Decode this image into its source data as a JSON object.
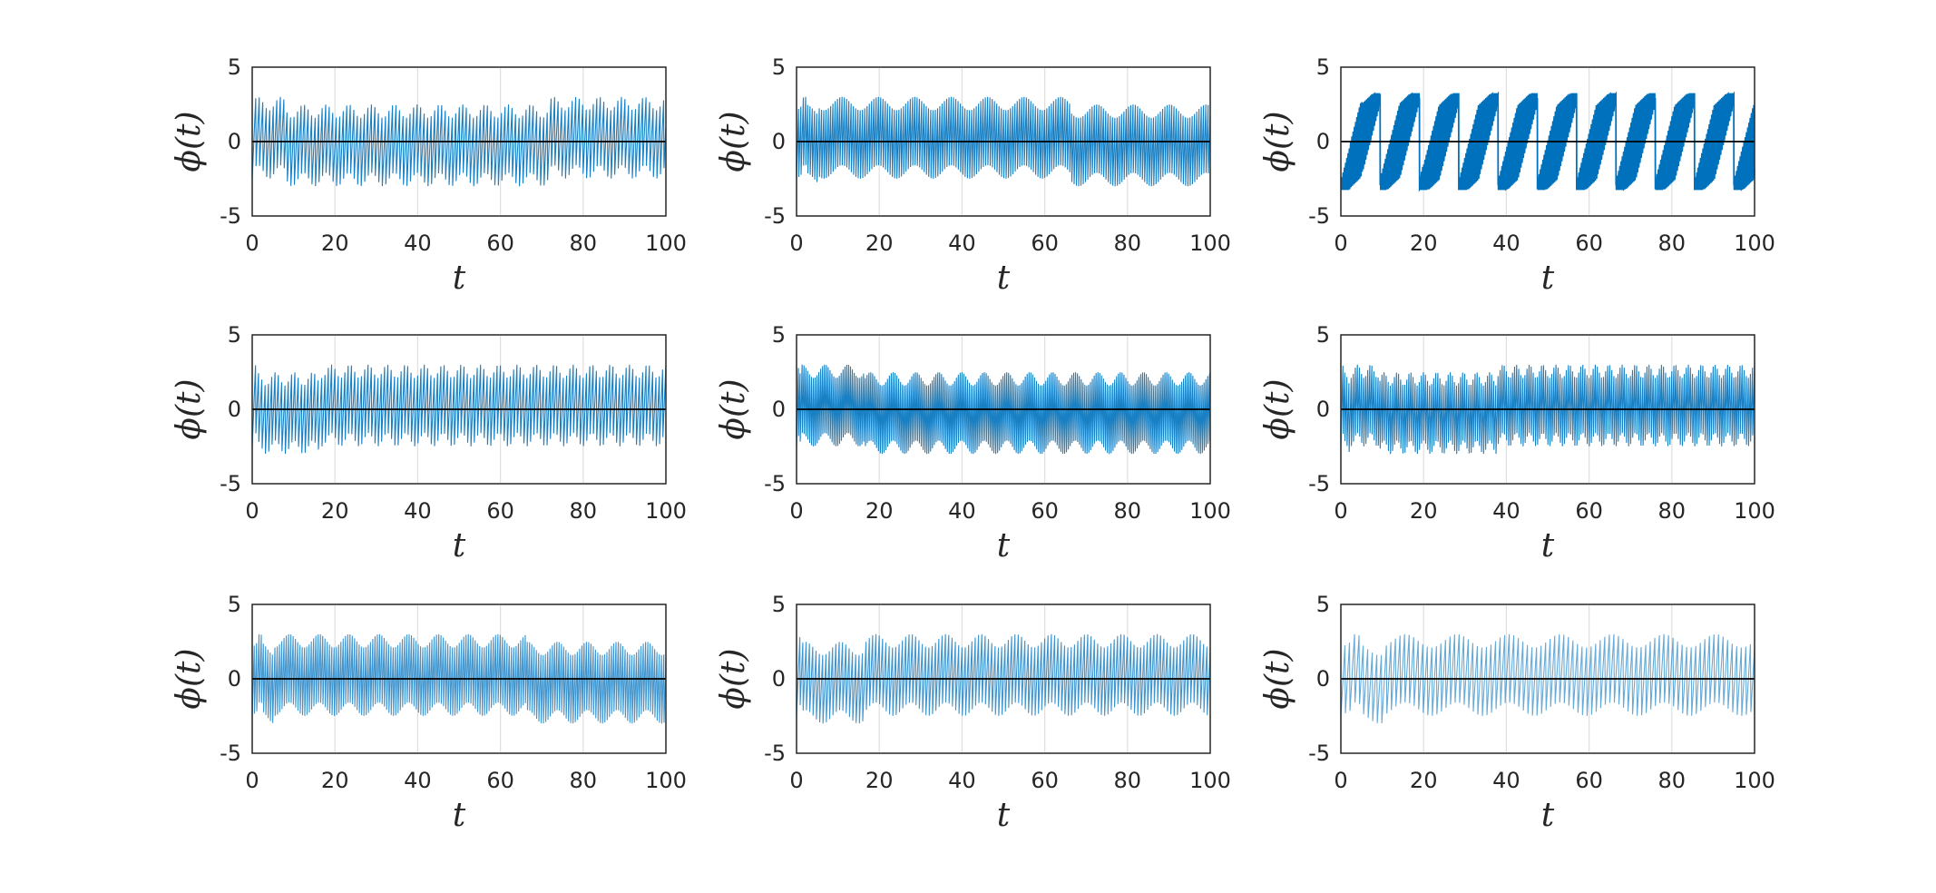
{
  "colors": {
    "series": "#0072BD",
    "zero_line": "#000000",
    "grid": "#dfdfdf",
    "axes": "#262626"
  },
  "chart_data": [
    {
      "type": "line",
      "xlabel": "t",
      "ylabel": "ϕ(t)",
      "xlim": [
        0,
        100
      ],
      "ylim": [
        -5,
        5
      ],
      "x_ticks": [
        "0",
        "20",
        "40",
        "60",
        "80",
        "100"
      ],
      "y_ticks": [
        "5",
        "0",
        "-5"
      ],
      "grid": "vertical",
      "amplitude": 3,
      "sawtooth_period": 0.85,
      "envelope_period": 5.5,
      "density": "dense"
    },
    {
      "type": "line",
      "xlabel": "t",
      "ylabel": "ϕ(t)",
      "xlim": [
        0,
        100
      ],
      "ylim": [
        -5,
        5
      ],
      "x_ticks": [
        "0",
        "20",
        "40",
        "60",
        "80",
        "100"
      ],
      "y_ticks": [
        "5",
        "0",
        "-5"
      ],
      "grid": "vertical",
      "amplitude": 3,
      "sawtooth_period": 0.55,
      "envelope_period": 8.8,
      "density": "dense"
    },
    {
      "type": "line",
      "xlabel": "t",
      "ylabel": "ϕ(t)",
      "xlim": [
        0,
        100
      ],
      "ylim": [
        -5,
        5
      ],
      "x_ticks": [
        "0",
        "20",
        "40",
        "60",
        "80",
        "100"
      ],
      "y_ticks": [
        "5",
        "0",
        "-5"
      ],
      "grid": "vertical",
      "amplitude": 3.2,
      "sawtooth_period": 0.3,
      "envelope_period": 9.5,
      "density": "filled"
    },
    {
      "type": "line",
      "xlabel": "t",
      "ylabel": "ϕ(t)",
      "xlim": [
        0,
        100
      ],
      "ylim": [
        -5,
        5
      ],
      "x_ticks": [
        "0",
        "20",
        "40",
        "60",
        "80",
        "100"
      ],
      "y_ticks": [
        "5",
        "0",
        "-5"
      ],
      "grid": "vertical",
      "amplitude": 3,
      "sawtooth_period": 0.8,
      "envelope_period": 4.5,
      "density": "dense"
    },
    {
      "type": "line",
      "xlabel": "t",
      "ylabel": "ϕ(t)",
      "xlim": [
        0,
        100
      ],
      "ylim": [
        -5,
        5
      ],
      "x_ticks": [
        "0",
        "20",
        "40",
        "60",
        "80",
        "100"
      ],
      "y_ticks": [
        "5",
        "0",
        "-5"
      ],
      "grid": "vertical",
      "amplitude": 3,
      "sawtooth_period": 0.45,
      "envelope_period": 5.5,
      "density": "dense"
    },
    {
      "type": "line",
      "xlabel": "t",
      "ylabel": "ϕ(t)",
      "xlim": [
        0,
        100
      ],
      "ylim": [
        -5,
        5
      ],
      "x_ticks": [
        "0",
        "20",
        "40",
        "60",
        "80",
        "100"
      ],
      "y_ticks": [
        "5",
        "0",
        "-5"
      ],
      "grid": "vertical",
      "amplitude": 3,
      "sawtooth_period": 0.5,
      "envelope_period": 3.2,
      "density": "dense"
    },
    {
      "type": "line",
      "xlabel": "t",
      "ylabel": "ϕ(t)",
      "xlim": [
        0,
        100
      ],
      "ylim": [
        -5,
        5
      ],
      "x_ticks": [
        "0",
        "20",
        "40",
        "60",
        "80",
        "100"
      ],
      "y_ticks": [
        "5",
        "0",
        "-5"
      ],
      "grid": "vertical",
      "amplitude": 3,
      "sawtooth_period": 0.55,
      "envelope_period": 7.2,
      "density": "medium"
    },
    {
      "type": "line",
      "xlabel": "t",
      "ylabel": "ϕ(t)",
      "xlim": [
        0,
        100
      ],
      "ylim": [
        -5,
        5
      ],
      "x_ticks": [
        "0",
        "20",
        "40",
        "60",
        "80",
        "100"
      ],
      "y_ticks": [
        "5",
        "0",
        "-5"
      ],
      "grid": "vertical",
      "amplitude": 3,
      "sawtooth_period": 0.8,
      "envelope_period": 8.5,
      "density": "medium"
    },
    {
      "type": "line",
      "xlabel": "t",
      "ylabel": "ϕ(t)",
      "xlim": [
        0,
        100
      ],
      "ylim": [
        -5,
        5
      ],
      "x_ticks": [
        "0",
        "20",
        "40",
        "60",
        "80",
        "100"
      ],
      "y_ticks": [
        "5",
        "0",
        "-5"
      ],
      "grid": "vertical",
      "amplitude": 3,
      "sawtooth_period": 1.1,
      "envelope_period": 12.5,
      "density": "sparse"
    }
  ]
}
